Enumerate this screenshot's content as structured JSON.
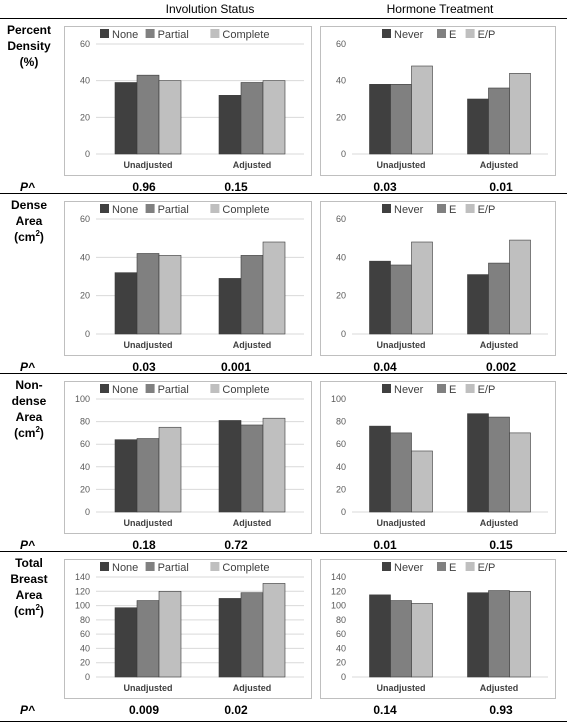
{
  "headers": {
    "involution": "Involution Status",
    "hormone": "Hormone Treatment"
  },
  "p_label": "P^",
  "colors": {
    "dark": "#404040",
    "mid": "#808080",
    "light": "#bfbfbf",
    "grid": "#d9d9d9",
    "border": "#bfbfbf"
  },
  "rows": [
    {
      "label_lines": [
        "Percent",
        "Density",
        "(%)"
      ],
      "label_sup": false,
      "p_involution": [
        "0.96",
        "0.15"
      ],
      "p_hormone": [
        "0.03",
        "0.01"
      ]
    },
    {
      "label_lines": [
        "Dense",
        "Area",
        "(cm"
      ],
      "label_sup": true,
      "p_involution": [
        "0.03",
        "0.001"
      ],
      "p_hormone": [
        "0.04",
        "0.002"
      ]
    },
    {
      "label_lines": [
        "Non-",
        "dense",
        "Area",
        "(cm"
      ],
      "label_sup": true,
      "p_involution": [
        "0.18",
        "0.72"
      ],
      "p_hormone": [
        "0.01",
        "0.15"
      ]
    },
    {
      "label_lines": [
        "Total",
        "Breast",
        "Area",
        "(cm"
      ],
      "label_sup": true,
      "p_involution": [
        "0.009",
        "0.02"
      ],
      "p_hormone": [
        "0.14",
        "0.93"
      ]
    }
  ],
  "chart_data": [
    {
      "id": "inv-pd",
      "type": "bar",
      "categories": [
        "Unadjusted",
        "Adjusted"
      ],
      "series": [
        {
          "name": "None",
          "values": [
            39,
            32
          ]
        },
        {
          "name": "Partial",
          "values": [
            43,
            39
          ]
        },
        {
          "name": "Complete",
          "values": [
            40,
            40
          ]
        }
      ],
      "ylim": [
        0,
        60
      ],
      "yticks": [
        0,
        20,
        40,
        60
      ],
      "grid": true,
      "legend": "top"
    },
    {
      "id": "hrt-pd",
      "type": "bar",
      "categories": [
        "Unadjusted",
        "Adjusted"
      ],
      "series": [
        {
          "name": "Never",
          "values": [
            38,
            30
          ]
        },
        {
          "name": "E",
          "values": [
            38,
            36
          ]
        },
        {
          "name": "E/P",
          "values": [
            48,
            44
          ]
        }
      ],
      "ylim": [
        0,
        60
      ],
      "yticks": [
        0,
        20,
        40,
        60
      ],
      "grid": false,
      "legend": "top"
    },
    {
      "id": "inv-da",
      "type": "bar",
      "categories": [
        "Unadjusted",
        "Adjusted"
      ],
      "series": [
        {
          "name": "None",
          "values": [
            32,
            29
          ]
        },
        {
          "name": "Partial",
          "values": [
            42,
            41
          ]
        },
        {
          "name": "Complete",
          "values": [
            41,
            48
          ]
        }
      ],
      "ylim": [
        0,
        60
      ],
      "yticks": [
        0,
        20,
        40,
        60
      ],
      "grid": true,
      "legend": "top"
    },
    {
      "id": "hrt-da",
      "type": "bar",
      "categories": [
        "Unadjusted",
        "Adjusted"
      ],
      "series": [
        {
          "name": "Never",
          "values": [
            38,
            31
          ]
        },
        {
          "name": "E",
          "values": [
            36,
            37
          ]
        },
        {
          "name": "E/P",
          "values": [
            48,
            49
          ]
        }
      ],
      "ylim": [
        0,
        60
      ],
      "yticks": [
        0,
        20,
        40,
        60
      ],
      "grid": false,
      "legend": "top"
    },
    {
      "id": "inv-nda",
      "type": "bar",
      "categories": [
        "Unadjusted",
        "Adjusted"
      ],
      "series": [
        {
          "name": "None",
          "values": [
            64,
            81
          ]
        },
        {
          "name": "Partial",
          "values": [
            65,
            77
          ]
        },
        {
          "name": "Complete",
          "values": [
            75,
            83
          ]
        }
      ],
      "ylim": [
        0,
        100
      ],
      "yticks": [
        0,
        20,
        40,
        60,
        80,
        100
      ],
      "grid": true,
      "legend": "top"
    },
    {
      "id": "hrt-nda",
      "type": "bar",
      "categories": [
        "Unadjusted",
        "Adjusted"
      ],
      "series": [
        {
          "name": "Never",
          "values": [
            76,
            87
          ]
        },
        {
          "name": "E",
          "values": [
            70,
            84
          ]
        },
        {
          "name": "E/P",
          "values": [
            54,
            70
          ]
        }
      ],
      "ylim": [
        0,
        100
      ],
      "yticks": [
        0,
        20,
        40,
        60,
        80,
        100
      ],
      "grid": false,
      "legend": "top"
    },
    {
      "id": "inv-tba",
      "type": "bar",
      "categories": [
        "Unadjusted",
        "Adjusted"
      ],
      "series": [
        {
          "name": "None",
          "values": [
            97,
            110
          ]
        },
        {
          "name": "Partial",
          "values": [
            107,
            118
          ]
        },
        {
          "name": "Complete",
          "values": [
            120,
            131
          ]
        }
      ],
      "ylim": [
        0,
        140
      ],
      "yticks": [
        0,
        20,
        40,
        60,
        80,
        100,
        120,
        140
      ],
      "grid": true,
      "legend": "top"
    },
    {
      "id": "hrt-tba",
      "type": "bar",
      "categories": [
        "Unadjusted",
        "Adjusted"
      ],
      "series": [
        {
          "name": "Never",
          "values": [
            115,
            118
          ]
        },
        {
          "name": "E",
          "values": [
            107,
            121
          ]
        },
        {
          "name": "E/P",
          "values": [
            103,
            120
          ]
        }
      ],
      "ylim": [
        0,
        140
      ],
      "yticks": [
        0,
        20,
        40,
        60,
        80,
        100,
        120,
        140
      ],
      "grid": false,
      "legend": "top"
    }
  ]
}
